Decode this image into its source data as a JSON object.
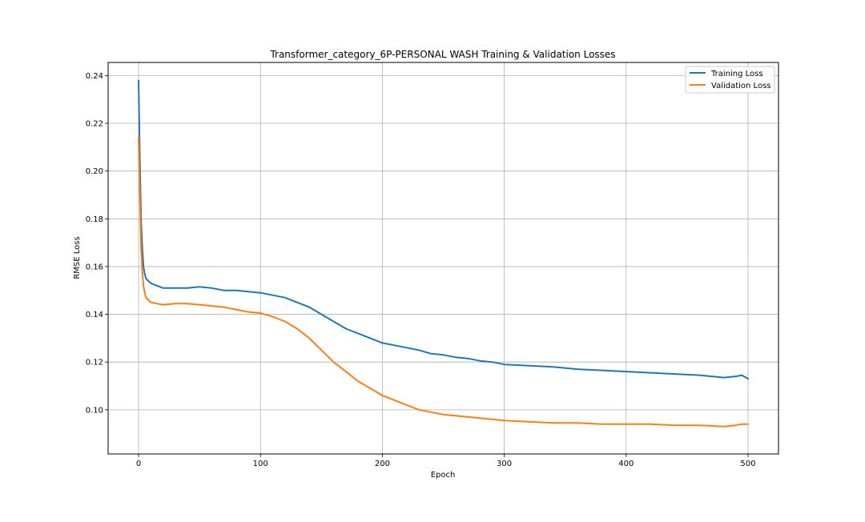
{
  "chart_data": {
    "type": "line",
    "title": "Transformer_category_6P-PERSONAL WASH Training & Validation Losses",
    "xlabel": "Epoch",
    "ylabel": "RMSE Loss",
    "xlim": [
      -25,
      525
    ],
    "ylim": [
      0.0815,
      0.2455
    ],
    "xticks": [
      0,
      100,
      200,
      300,
      400,
      500
    ],
    "xtick_labels": [
      "0",
      "100",
      "200",
      "300",
      "400",
      "500"
    ],
    "yticks": [
      0.1,
      0.12,
      0.14,
      0.16,
      0.18,
      0.2,
      0.22,
      0.24
    ],
    "ytick_labels": [
      "0.10",
      "0.12",
      "0.14",
      "0.16",
      "0.18",
      "0.20",
      "0.22",
      "0.24"
    ],
    "grid": true,
    "legend_position": "upper right",
    "series": [
      {
        "name": "Training Loss",
        "color": "#1f77b4",
        "x": [
          0,
          1,
          2,
          3,
          4,
          5,
          6,
          8,
          10,
          15,
          20,
          30,
          40,
          50,
          60,
          70,
          80,
          90,
          100,
          110,
          120,
          130,
          140,
          150,
          160,
          170,
          180,
          190,
          200,
          210,
          220,
          230,
          240,
          250,
          260,
          270,
          280,
          290,
          300,
          320,
          340,
          360,
          380,
          400,
          420,
          440,
          460,
          480,
          490,
          495,
          500
        ],
        "values": [
          0.238,
          0.205,
          0.18,
          0.168,
          0.16,
          0.157,
          0.155,
          0.154,
          0.153,
          0.152,
          0.151,
          0.151,
          0.151,
          0.1515,
          0.151,
          0.15,
          0.15,
          0.1495,
          0.149,
          0.148,
          0.147,
          0.145,
          0.143,
          0.14,
          0.137,
          0.134,
          0.132,
          0.13,
          0.128,
          0.127,
          0.126,
          0.125,
          0.1235,
          0.123,
          0.122,
          0.1215,
          0.1205,
          0.12,
          0.119,
          0.1185,
          0.118,
          0.117,
          0.1165,
          0.116,
          0.1155,
          0.115,
          0.1145,
          0.1135,
          0.114,
          0.1145,
          0.113
        ]
      },
      {
        "name": "Validation Loss",
        "color": "#ff7f0e",
        "x": [
          0,
          1,
          2,
          3,
          4,
          5,
          6,
          8,
          10,
          15,
          20,
          30,
          40,
          50,
          60,
          70,
          80,
          90,
          100,
          110,
          120,
          130,
          140,
          150,
          160,
          170,
          180,
          190,
          200,
          210,
          220,
          230,
          240,
          250,
          260,
          270,
          280,
          290,
          300,
          320,
          340,
          360,
          380,
          400,
          420,
          440,
          460,
          480,
          490,
          495,
          500
        ],
        "values": [
          0.214,
          0.19,
          0.168,
          0.158,
          0.152,
          0.149,
          0.147,
          0.146,
          0.145,
          0.1445,
          0.144,
          0.1445,
          0.1445,
          0.144,
          0.1435,
          0.143,
          0.142,
          0.141,
          0.1405,
          0.139,
          0.137,
          0.134,
          0.13,
          0.125,
          0.12,
          0.116,
          0.112,
          0.109,
          0.106,
          0.104,
          0.102,
          0.1,
          0.099,
          0.098,
          0.0975,
          0.097,
          0.0965,
          0.096,
          0.0955,
          0.095,
          0.0945,
          0.0945,
          0.094,
          0.094,
          0.094,
          0.0935,
          0.0935,
          0.093,
          0.0935,
          0.094,
          0.094
        ]
      }
    ]
  }
}
